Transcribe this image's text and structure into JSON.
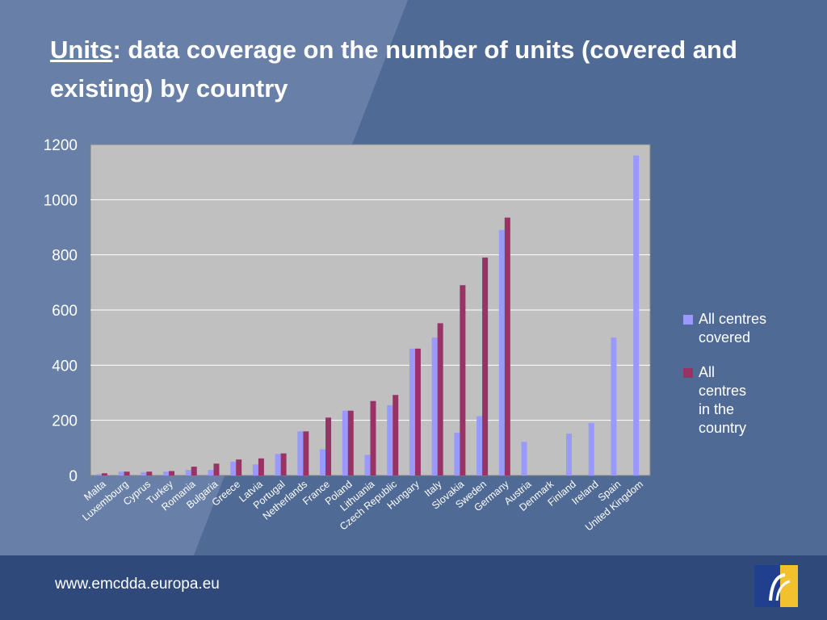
{
  "slide": {
    "title_lead": "Units",
    "title_rest": ": data coverage on the number of units (covered and existing) by country",
    "footer_url": "www.emcdda.europa.eu"
  },
  "colors": {
    "covered": "#9999ff",
    "existing": "#993366",
    "plot_bg": "#c0c0c0",
    "background": "#506a96",
    "footer": "#2f4a7a"
  },
  "chart_data": {
    "type": "bar",
    "categories": [
      "Malta",
      "Luxembourg",
      "Cyprus",
      "Turkey",
      "Romania",
      "Bulgaria",
      "Greece",
      "Latvia",
      "Portugal",
      "Netherlands",
      "France",
      "Poland",
      "Lithuania",
      "Czech Republic",
      "Hungary",
      "Italy",
      "Slovakia",
      "Sweden",
      "Germany",
      "Austria",
      "Denmark",
      "Finland",
      "Ireland",
      "Spain",
      "United Kingdom"
    ],
    "series": [
      {
        "name": "All centres covered",
        "values": [
          5,
          14,
          12,
          14,
          20,
          20,
          50,
          40,
          78,
          160,
          95,
          235,
          75,
          255,
          460,
          500,
          155,
          215,
          890,
          122,
          0,
          152,
          190,
          500,
          1160
        ]
      },
      {
        "name": "All centres in the country",
        "values": [
          8,
          14,
          14,
          16,
          32,
          43,
          58,
          62,
          80,
          160,
          210,
          235,
          270,
          292,
          460,
          552,
          690,
          790,
          935,
          null,
          null,
          null,
          null,
          null,
          null
        ]
      }
    ],
    "ylim": [
      0,
      1200
    ],
    "yticks": [
      0,
      200,
      400,
      600,
      800,
      1000,
      1200
    ],
    "grid": true,
    "legend": "right"
  }
}
